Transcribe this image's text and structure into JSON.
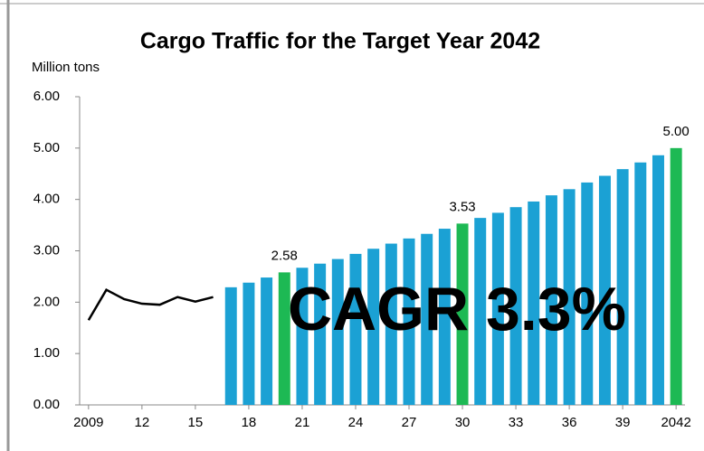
{
  "chart_data": {
    "type": "bar",
    "title": "Cargo Traffic for the Target Year 2042",
    "y_axis_label": "Million tons",
    "annotation": "CAGR 3.3%",
    "categories": [
      "2009",
      null,
      null,
      "12",
      null,
      null,
      "15",
      null,
      null,
      "18",
      null,
      null,
      "21",
      null,
      null,
      "24",
      null,
      null,
      "27",
      null,
      null,
      "30",
      null,
      null,
      "33",
      null,
      null,
      "36",
      null,
      null,
      "39",
      null,
      null,
      "2042"
    ],
    "series": [
      {
        "type": "line",
        "color": "#000000",
        "values": [
          1.65,
          2.24,
          2.06,
          1.97,
          1.95,
          2.1,
          2.01,
          2.1,
          null,
          null,
          null,
          null,
          null,
          null,
          null,
          null,
          null,
          null,
          null,
          null,
          null,
          null,
          null,
          null,
          null,
          null,
          null,
          null,
          null,
          null,
          null,
          null,
          null,
          null
        ]
      },
      {
        "type": "bar",
        "color": "#1ba1d4",
        "highlight_color": "#1db954",
        "values": [
          null,
          null,
          null,
          null,
          null,
          null,
          null,
          null,
          2.29,
          2.38,
          2.48,
          2.58,
          2.67,
          2.75,
          2.84,
          2.94,
          3.04,
          3.14,
          3.24,
          3.33,
          3.43,
          3.53,
          3.64,
          3.74,
          3.85,
          3.96,
          4.08,
          4.2,
          4.33,
          4.46,
          4.59,
          4.72,
          4.86,
          5.0
        ],
        "value_labels": [
          null,
          null,
          null,
          null,
          null,
          null,
          null,
          null,
          null,
          null,
          null,
          "2.58",
          null,
          null,
          null,
          null,
          null,
          null,
          null,
          null,
          null,
          "3.53",
          null,
          null,
          null,
          null,
          null,
          null,
          null,
          null,
          null,
          null,
          null,
          "5.00"
        ]
      }
    ],
    "ylim": [
      0,
      6
    ],
    "yticks": [
      {
        "value": 0,
        "label": "0.00"
      },
      {
        "value": 1,
        "label": "1.00"
      },
      {
        "value": 2,
        "label": "2.00"
      },
      {
        "value": 3,
        "label": "3.00"
      },
      {
        "value": 4,
        "label": "4.00"
      },
      {
        "value": 5,
        "label": "5.00"
      },
      {
        "value": 6,
        "label": "6.00"
      }
    ],
    "grid": false
  }
}
